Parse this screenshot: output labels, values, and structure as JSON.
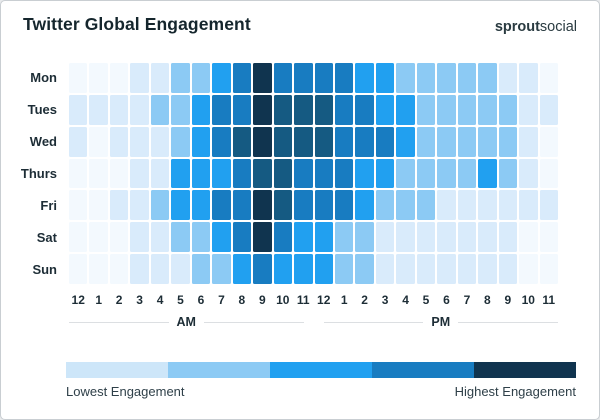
{
  "header": {
    "title": "Twitter Global Engagement",
    "logo": {
      "bold": "sprout",
      "regular": "social"
    }
  },
  "legend": {
    "lowest_label": "Lowest Engagement",
    "highest_label": "Highest Engagement",
    "bar_colors": [
      "#cde6f9",
      "#8ccaf4",
      "#21a0f0",
      "#187cc1",
      "#10344f"
    ]
  },
  "chart_data": {
    "type": "heatmap",
    "title": "Twitter Global Engagement",
    "x_labels": [
      "12",
      "1",
      "2",
      "3",
      "4",
      "5",
      "6",
      "7",
      "8",
      "9",
      "10",
      "11",
      "12",
      "1",
      "2",
      "3",
      "4",
      "5",
      "6",
      "7",
      "8",
      "9",
      "10",
      "11"
    ],
    "x_periods": [
      "AM",
      "PM"
    ],
    "y_labels": [
      "Mon",
      "Tues",
      "Wed",
      "Thurs",
      "Fri",
      "Sat",
      "Sun"
    ],
    "scale": {
      "description": "engagement level per cell, 0 = lowest, 6 = highest",
      "palette": [
        "#f3f9fe",
        "#d9ebfb",
        "#8ccaf4",
        "#21a0f0",
        "#187cc1",
        "#155a82",
        "#10344f"
      ],
      "min_label": "Lowest Engagement",
      "max_label": "Highest Engagement",
      "legend_position": "bottom"
    },
    "values": [
      [
        0,
        0,
        0,
        1,
        1,
        2,
        2,
        3,
        4,
        6,
        4,
        4,
        4,
        4,
        3,
        3,
        2,
        2,
        2,
        2,
        2,
        1,
        1,
        0
      ],
      [
        1,
        1,
        1,
        1,
        2,
        2,
        3,
        4,
        4,
        6,
        5,
        5,
        5,
        4,
        4,
        3,
        3,
        2,
        2,
        2,
        2,
        2,
        1,
        1
      ],
      [
        1,
        0,
        1,
        1,
        1,
        2,
        3,
        4,
        5,
        6,
        5,
        5,
        5,
        4,
        4,
        4,
        3,
        2,
        2,
        2,
        2,
        2,
        1,
        0
      ],
      [
        0,
        0,
        0,
        1,
        1,
        3,
        3,
        3,
        4,
        5,
        5,
        4,
        4,
        4,
        3,
        3,
        2,
        2,
        2,
        2,
        3,
        2,
        1,
        0
      ],
      [
        0,
        0,
        1,
        1,
        2,
        3,
        3,
        4,
        4,
        6,
        5,
        4,
        4,
        4,
        3,
        2,
        2,
        2,
        1,
        1,
        1,
        1,
        1,
        1
      ],
      [
        0,
        0,
        0,
        1,
        1,
        2,
        2,
        3,
        4,
        6,
        4,
        3,
        3,
        2,
        2,
        1,
        1,
        1,
        1,
        1,
        1,
        1,
        0,
        0
      ],
      [
        0,
        0,
        0,
        1,
        1,
        1,
        2,
        2,
        3,
        4,
        3,
        3,
        3,
        2,
        2,
        1,
        1,
        1,
        1,
        1,
        1,
        1,
        0,
        0
      ]
    ]
  }
}
